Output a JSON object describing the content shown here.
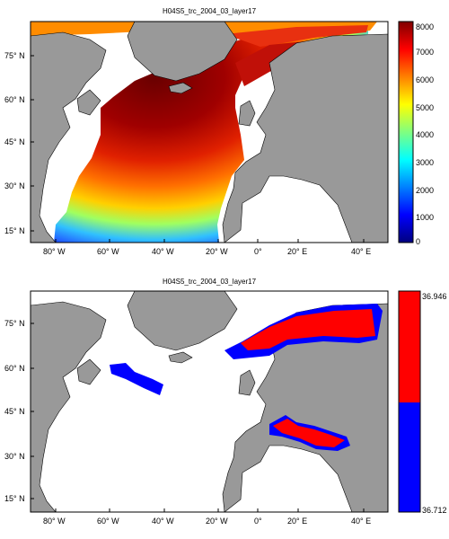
{
  "panels": [
    {
      "title": "H04S5_trc_2004_03_layer17",
      "colorbar": {
        "ticks": [
          "8000",
          "7000",
          "6000",
          "5000",
          "4000",
          "3000",
          "2000",
          "1000",
          "0"
        ]
      }
    },
    {
      "title": "H04S5_trc_2004_03_layer17",
      "colorbar": {
        "top": "36.946",
        "bottom": "36.712"
      }
    }
  ],
  "axes": {
    "x_ticks": [
      "80° W",
      "60° W",
      "40° W",
      "20° W",
      "0°",
      "20° E",
      "40° E"
    ],
    "y_ticks": [
      "75° N",
      "60° N",
      "45° N",
      "30° N",
      "15° N"
    ]
  },
  "colors": {
    "land": "#999999",
    "ocean_nodata": "#ffffff",
    "binary_high": "#ff0000",
    "binary_low": "#0000ff"
  }
}
